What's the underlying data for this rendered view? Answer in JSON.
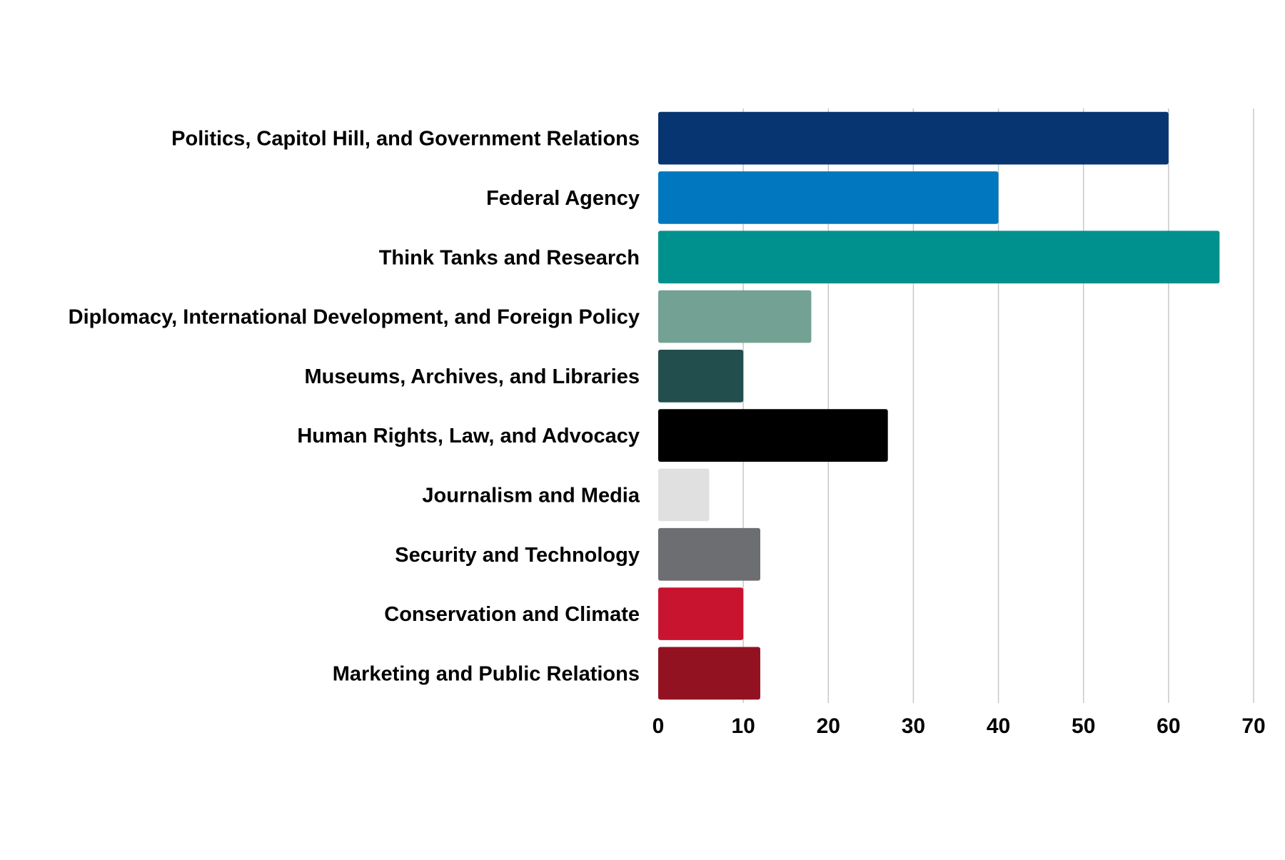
{
  "chart_data": {
    "type": "bar",
    "orientation": "horizontal",
    "categories": [
      "Politics, Capitol Hill, and Government Relations",
      "Federal Agency",
      "Think Tanks and Research",
      "Diplomacy, International Development, and Foreign Policy",
      "Museums, Archives, and Libraries",
      "Human Rights, Law, and Advocacy",
      "Journalism and Media",
      "Security and Technology",
      "Conservation and Climate",
      "Marketing and Public Relations"
    ],
    "values": [
      60,
      40,
      66,
      18,
      10,
      27,
      6,
      12,
      10,
      12
    ],
    "colors": [
      "#073572",
      "#0077BE",
      "#00918E",
      "#73A193",
      "#224E4E",
      "#000000",
      "#E0E0E0",
      "#6D6E71",
      "#C8142F",
      "#931221"
    ],
    "xlim": [
      0,
      70
    ],
    "xticks": [
      0,
      10,
      20,
      30,
      40,
      50,
      60,
      70
    ],
    "grid": true,
    "legend": "none"
  }
}
